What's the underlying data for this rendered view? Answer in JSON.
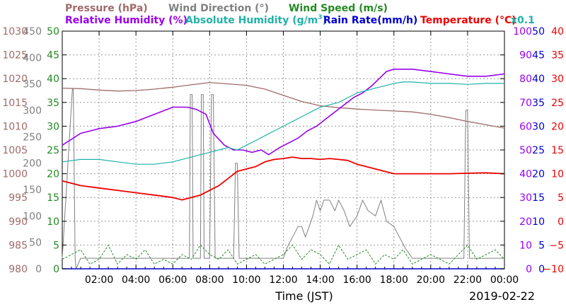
{
  "chart_data": {
    "type": "line",
    "title": "",
    "date": "2019-02-22",
    "xlabel": "Time (JST)",
    "x_ticks": [
      "02:00",
      "04:00",
      "06:00",
      "08:00",
      "10:00",
      "12:00",
      "14:00",
      "16:00",
      "18:00",
      "20:00",
      "22:00",
      "00:00"
    ],
    "x_range_hours": [
      0,
      24
    ],
    "grid": true,
    "legend": {
      "pressure": "Pressure (hPa)",
      "wind_dir": "Wind Direction (°)",
      "wind_speed": "Wind Speed (m/s)",
      "rel_hum": "Relative Humidity (%)",
      "abs_hum_pre": "Absolute Humidity (g/m",
      "abs_hum_sup": "3",
      "abs_hum_post": ")",
      "rain": "Rain Rate(mm/h)",
      "temp": "Temperature (°C)",
      "x01": "x0.1"
    },
    "colors": {
      "pressure": "#a06a6a",
      "wind_dir": "#808080",
      "wind_speed": "#228b22",
      "rel_hum": "#9900ee",
      "abs_hum": "#20b2aa",
      "rain": "#0000cc",
      "temp": "#ee0000"
    },
    "axes": {
      "pressure": {
        "range": [
          980,
          1030
        ],
        "ticks": [
          "980",
          "985",
          "990",
          "995",
          "1000",
          "1005",
          "1010",
          "1015",
          "1020",
          "1025",
          "1030"
        ]
      },
      "wind_dir": {
        "range": [
          0,
          450
        ],
        "ticks": [
          "0",
          "50",
          "100",
          "150",
          "200",
          "250",
          "300",
          "350",
          "400",
          "450"
        ]
      },
      "wind_speed": {
        "range": [
          0,
          50
        ],
        "ticks": [
          "0",
          "5",
          "10",
          "15",
          "20",
          "25",
          "30",
          "35",
          "40",
          "45",
          "50"
        ]
      },
      "rel_hum": {
        "range": [
          0,
          100
        ],
        "ticks": [
          "0",
          "10",
          "20",
          "30",
          "40",
          "50",
          "60",
          "70",
          "80",
          "90",
          "100"
        ]
      },
      "rain": {
        "range": [
          0,
          50
        ],
        "ticks": [
          "0",
          "5",
          "10",
          "15",
          "20",
          "25",
          "30",
          "35",
          "40",
          "45",
          "50"
        ]
      },
      "temp": {
        "range": [
          -10,
          40
        ],
        "ticks": [
          "−10",
          "−5",
          "0",
          "5",
          "10",
          "15",
          "20",
          "25",
          "30",
          "35",
          "40"
        ]
      }
    },
    "series": [
      {
        "key": "pressure",
        "name": "Pressure (hPa)",
        "axis": "pressure",
        "x": [
          0,
          1,
          2,
          3,
          4,
          5,
          6,
          7,
          8,
          9,
          10,
          11,
          12,
          13,
          14,
          15,
          16,
          17,
          18,
          19,
          20,
          21,
          22,
          23,
          24
        ],
        "y": [
          1018,
          1017.9,
          1017.6,
          1017.4,
          1017.5,
          1017.8,
          1018.2,
          1018.7,
          1019.2,
          1018.9,
          1018.6,
          1017.8,
          1016.5,
          1015.2,
          1014.3,
          1013.9,
          1013.6,
          1013.4,
          1013.2,
          1013.0,
          1012.5,
          1011.8,
          1011.0,
          1010.3,
          1009.6
        ]
      },
      {
        "key": "wind_dir",
        "name": "Wind Direction (°)",
        "axis": "wind_dir",
        "x": [
          0,
          0.55,
          0.6,
          0.7,
          0.75,
          1.0,
          6.9,
          6.95,
          7.05,
          7.1,
          7.5,
          7.55,
          7.65,
          7.7,
          8.0,
          8.1,
          8.2,
          8.3,
          8.6,
          8.7,
          9.3,
          9.4,
          9.5,
          9.6,
          10.0,
          10.5,
          11.0,
          11.5,
          12.0,
          12.2,
          12.5,
          12.8,
          13.0,
          13.2,
          13.4,
          13.6,
          13.8,
          14.0,
          14.2,
          14.5,
          14.8,
          15.0,
          15.3,
          15.6,
          16.0,
          16.3,
          16.6,
          17.0,
          17.3,
          17.6,
          18.0,
          18.3,
          18.6,
          19.0,
          20.0,
          21.0,
          21.8,
          21.9,
          22.0,
          22.1,
          22.5,
          23.0,
          23.5,
          24.0
        ],
        "y": [
          20,
          340,
          340,
          20,
          0,
          20,
          20,
          330,
          330,
          20,
          20,
          330,
          330,
          20,
          20,
          330,
          330,
          20,
          20,
          20,
          20,
          200,
          200,
          20,
          20,
          20,
          20,
          20,
          20,
          40,
          60,
          80,
          80,
          60,
          80,
          100,
          130,
          110,
          130,
          130,
          110,
          130,
          110,
          80,
          100,
          130,
          110,
          100,
          130,
          90,
          80,
          60,
          40,
          20,
          20,
          20,
          20,
          300,
          300,
          20,
          20,
          20,
          20,
          20
        ]
      },
      {
        "key": "wind_speed",
        "name": "Wind Speed (m/s)",
        "axis": "wind_speed",
        "x": [
          0,
          0.5,
          1,
          1.5,
          2,
          2.5,
          3,
          3.5,
          4,
          4.5,
          5,
          5.5,
          6,
          6.5,
          7,
          7.5,
          8,
          8.5,
          9,
          9.5,
          10,
          10.5,
          11,
          11.5,
          12,
          12.5,
          13,
          13.5,
          14,
          14.5,
          15,
          15.5,
          16,
          16.5,
          17,
          17.5,
          18,
          18.5,
          19,
          19.5,
          20,
          20.5,
          21,
          21.5,
          22,
          22.5,
          23,
          23.5,
          24
        ],
        "y": [
          2,
          3,
          4,
          1,
          2,
          5,
          1,
          3,
          2,
          4,
          1,
          2,
          1,
          3,
          2,
          5,
          3,
          2,
          4,
          1,
          2,
          3,
          1,
          2,
          3,
          5,
          2,
          4,
          3,
          1,
          5,
          2,
          3,
          4,
          1,
          3,
          2,
          4,
          1,
          2,
          3,
          2,
          1,
          3,
          5,
          2,
          3,
          4,
          2
        ]
      },
      {
        "key": "rel_hum",
        "name": "Relative Humidity (%)",
        "axis": "rel_hum",
        "x": [
          0,
          1,
          2,
          3,
          4,
          5,
          6,
          6.8,
          7.3,
          7.8,
          8.2,
          8.8,
          9.3,
          9.8,
          10.3,
          10.8,
          11.2,
          11.8,
          12.3,
          12.8,
          13.3,
          13.8,
          14.3,
          14.8,
          15.3,
          15.8,
          16.3,
          16.8,
          17.2,
          17.6,
          18.0,
          18.5,
          19,
          20,
          21,
          22,
          23,
          24
        ],
        "y": [
          52,
          57,
          59,
          60,
          62,
          65,
          68,
          68,
          67,
          65,
          57,
          52,
          50,
          50,
          49,
          50,
          48,
          51,
          53,
          55,
          58,
          60,
          63,
          66,
          69,
          72,
          74,
          77,
          80,
          83,
          84,
          84,
          84,
          83,
          82,
          81,
          81,
          82
        ]
      },
      {
        "key": "abs_hum",
        "name": "Absolute Humidity (g/m3)",
        "axis": "wind_speed",
        "x": [
          0,
          1,
          2,
          3,
          4,
          5,
          6,
          6.5,
          7,
          7.5,
          8,
          8.5,
          9,
          9.5,
          10,
          10.5,
          11,
          11.5,
          12,
          12.5,
          13,
          13.5,
          14,
          14.5,
          15,
          15.5,
          16,
          16.5,
          17,
          17.5,
          18,
          18.5,
          19,
          20,
          21,
          22,
          23,
          24
        ],
        "y": [
          22.5,
          23,
          23,
          22.5,
          22,
          22,
          22.5,
          23,
          23.5,
          24,
          24.5,
          25,
          25.5,
          25,
          26,
          27,
          28,
          29,
          30,
          31,
          32,
          33,
          34,
          34.5,
          35,
          36,
          37,
          37.5,
          38,
          38.5,
          39,
          39.3,
          39.3,
          39,
          39,
          38.8,
          39,
          39
        ]
      },
      {
        "key": "rain",
        "name": "Rain Rate(mm/h)",
        "axis": "rain",
        "x": [
          0,
          24
        ],
        "y": [
          0,
          0
        ]
      },
      {
        "key": "temp",
        "name": "Temperature (°C)",
        "axis": "temp",
        "x": [
          0,
          1,
          2,
          3,
          4,
          5,
          6,
          6.5,
          7,
          7.5,
          8,
          8.5,
          9,
          9.5,
          10,
          10.5,
          11,
          11.5,
          12,
          12.5,
          13,
          13.5,
          14,
          14.5,
          15,
          15.5,
          16,
          16.5,
          17,
          17.5,
          18,
          18.5,
          19,
          20,
          21,
          22,
          23,
          24
        ],
        "y": [
          8.5,
          7.5,
          7,
          6.5,
          6,
          5.5,
          5,
          4.5,
          5,
          5.5,
          6.5,
          7.5,
          9,
          10.5,
          11,
          11.5,
          12.5,
          13,
          13.2,
          13.5,
          13.2,
          13.2,
          13.0,
          13.2,
          13.0,
          12.8,
          12.0,
          11.5,
          11.0,
          10.5,
          10.0,
          10.0,
          10.0,
          10.0,
          10.0,
          10.1,
          10.2,
          10.0
        ]
      }
    ]
  }
}
